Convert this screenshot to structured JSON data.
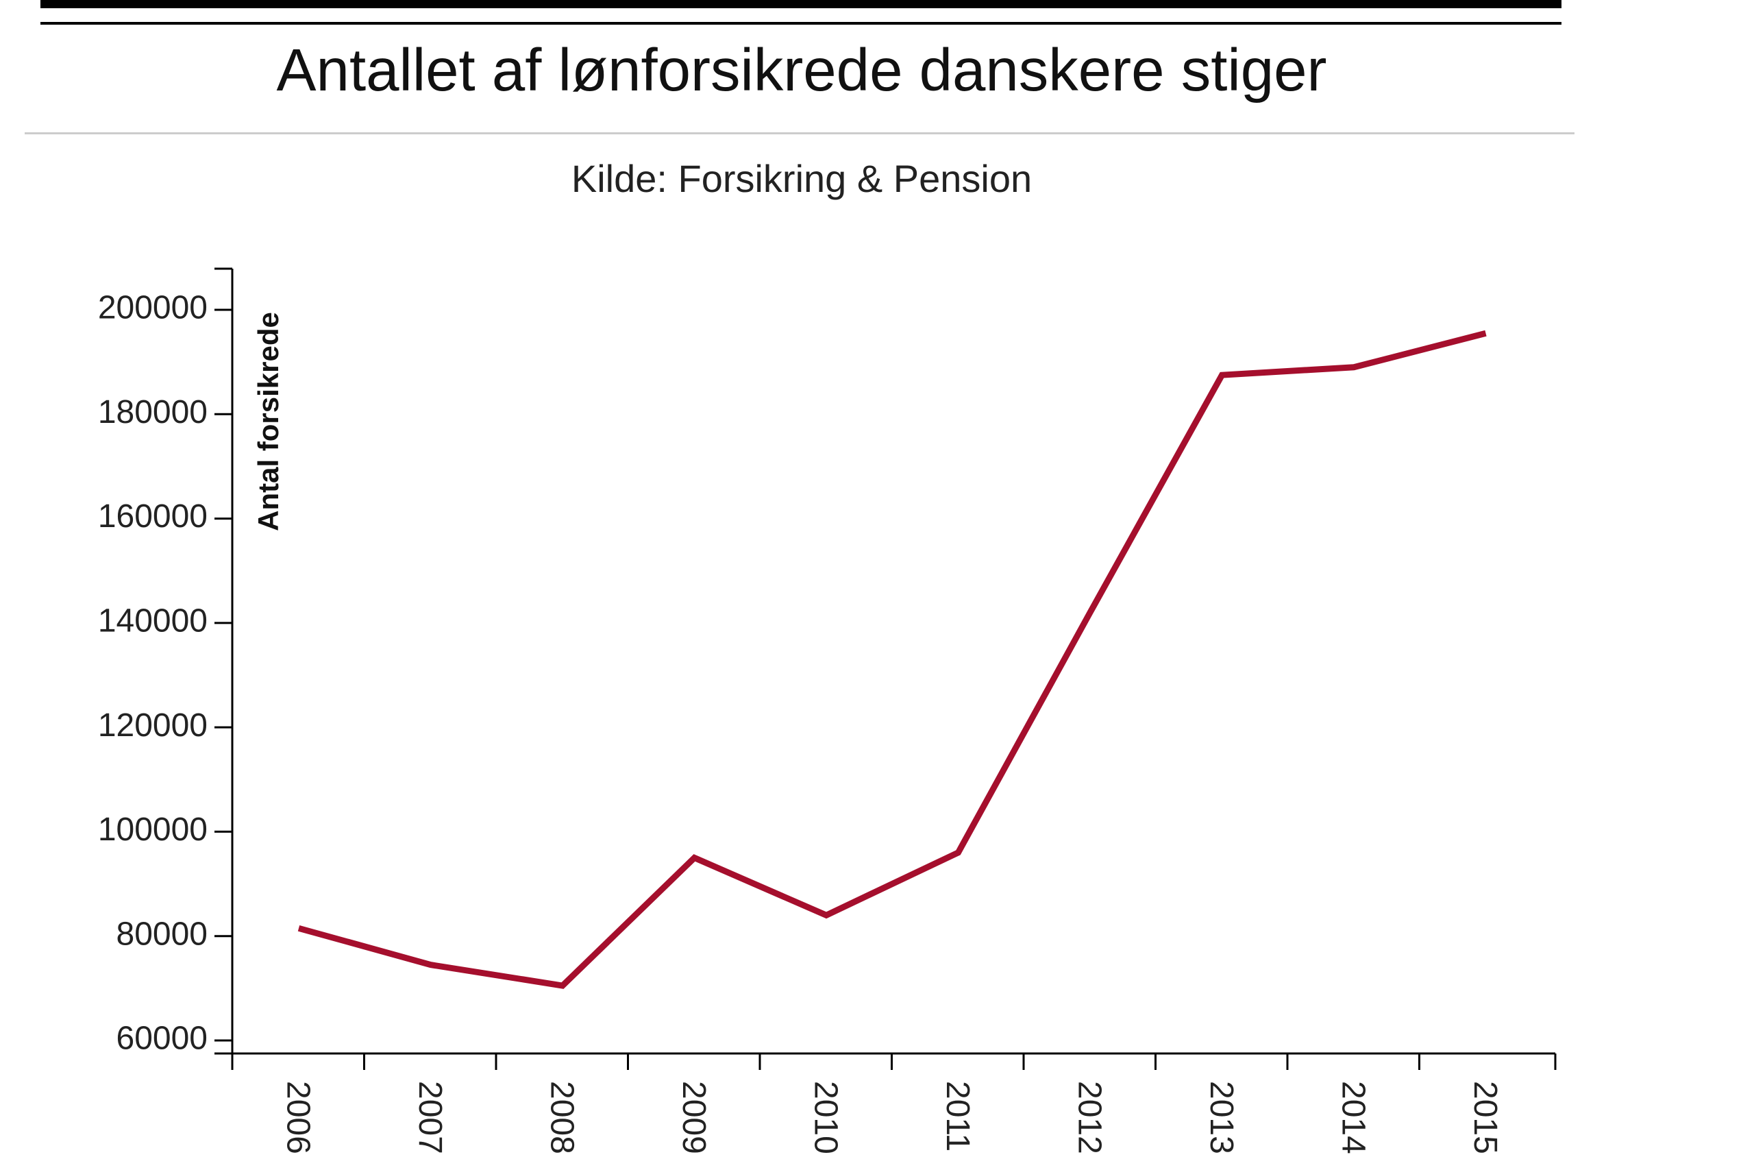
{
  "chart_data": {
    "type": "line",
    "title": "Antallet af lønforsikrede danskere stiger",
    "subtitle": "Kilde: Forsikring & Pension",
    "ylabel": "Antal forsikrede",
    "xlabel": "",
    "ylim": [
      58000,
      208000
    ],
    "yticks": [
      60000,
      80000,
      100000,
      120000,
      140000,
      160000,
      180000,
      200000
    ],
    "ytick_labels": [
      "60000",
      "80000",
      "100000",
      "120000",
      "140000",
      "160000",
      "180000",
      "200000"
    ],
    "categories": [
      "2006",
      "2007",
      "2008",
      "2009",
      "2010",
      "2011",
      "2012",
      "2013",
      "2014",
      "2015"
    ],
    "series": [
      {
        "values": [
          81500,
          74500,
          70500,
          95000,
          84000,
          96000,
          142000,
          187500,
          189000,
          195500
        ],
        "color": "#a50f2d"
      }
    ],
    "grid": false,
    "legend": "none"
  }
}
